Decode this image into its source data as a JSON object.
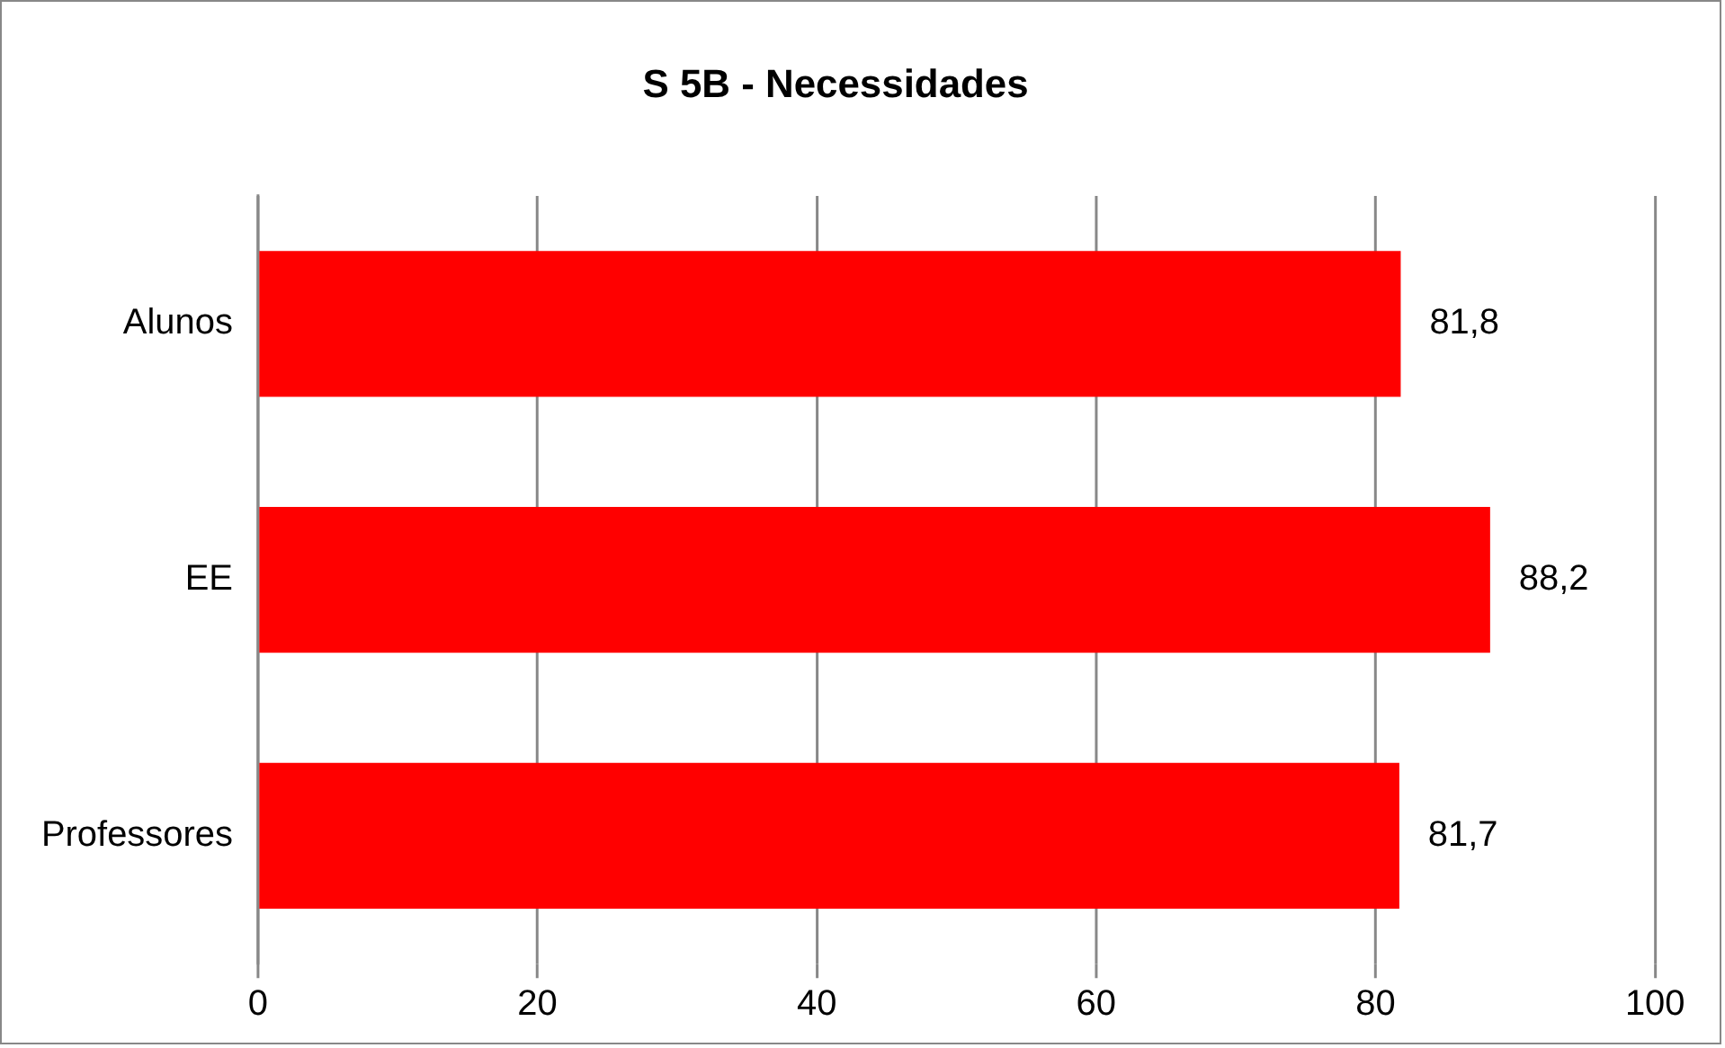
{
  "chart_data": {
    "type": "bar",
    "orientation": "horizontal",
    "title": "S 5B - Necessidades",
    "categories": [
      "Alunos",
      "EE",
      "Professores"
    ],
    "values": [
      81.8,
      88.2,
      81.7
    ],
    "value_labels": [
      "81,8",
      "88,2",
      "81,7"
    ],
    "color": "#ff0000",
    "xlim": [
      0,
      100
    ],
    "xticks": [
      0,
      20,
      40,
      60,
      80,
      100
    ],
    "grid": "x"
  }
}
